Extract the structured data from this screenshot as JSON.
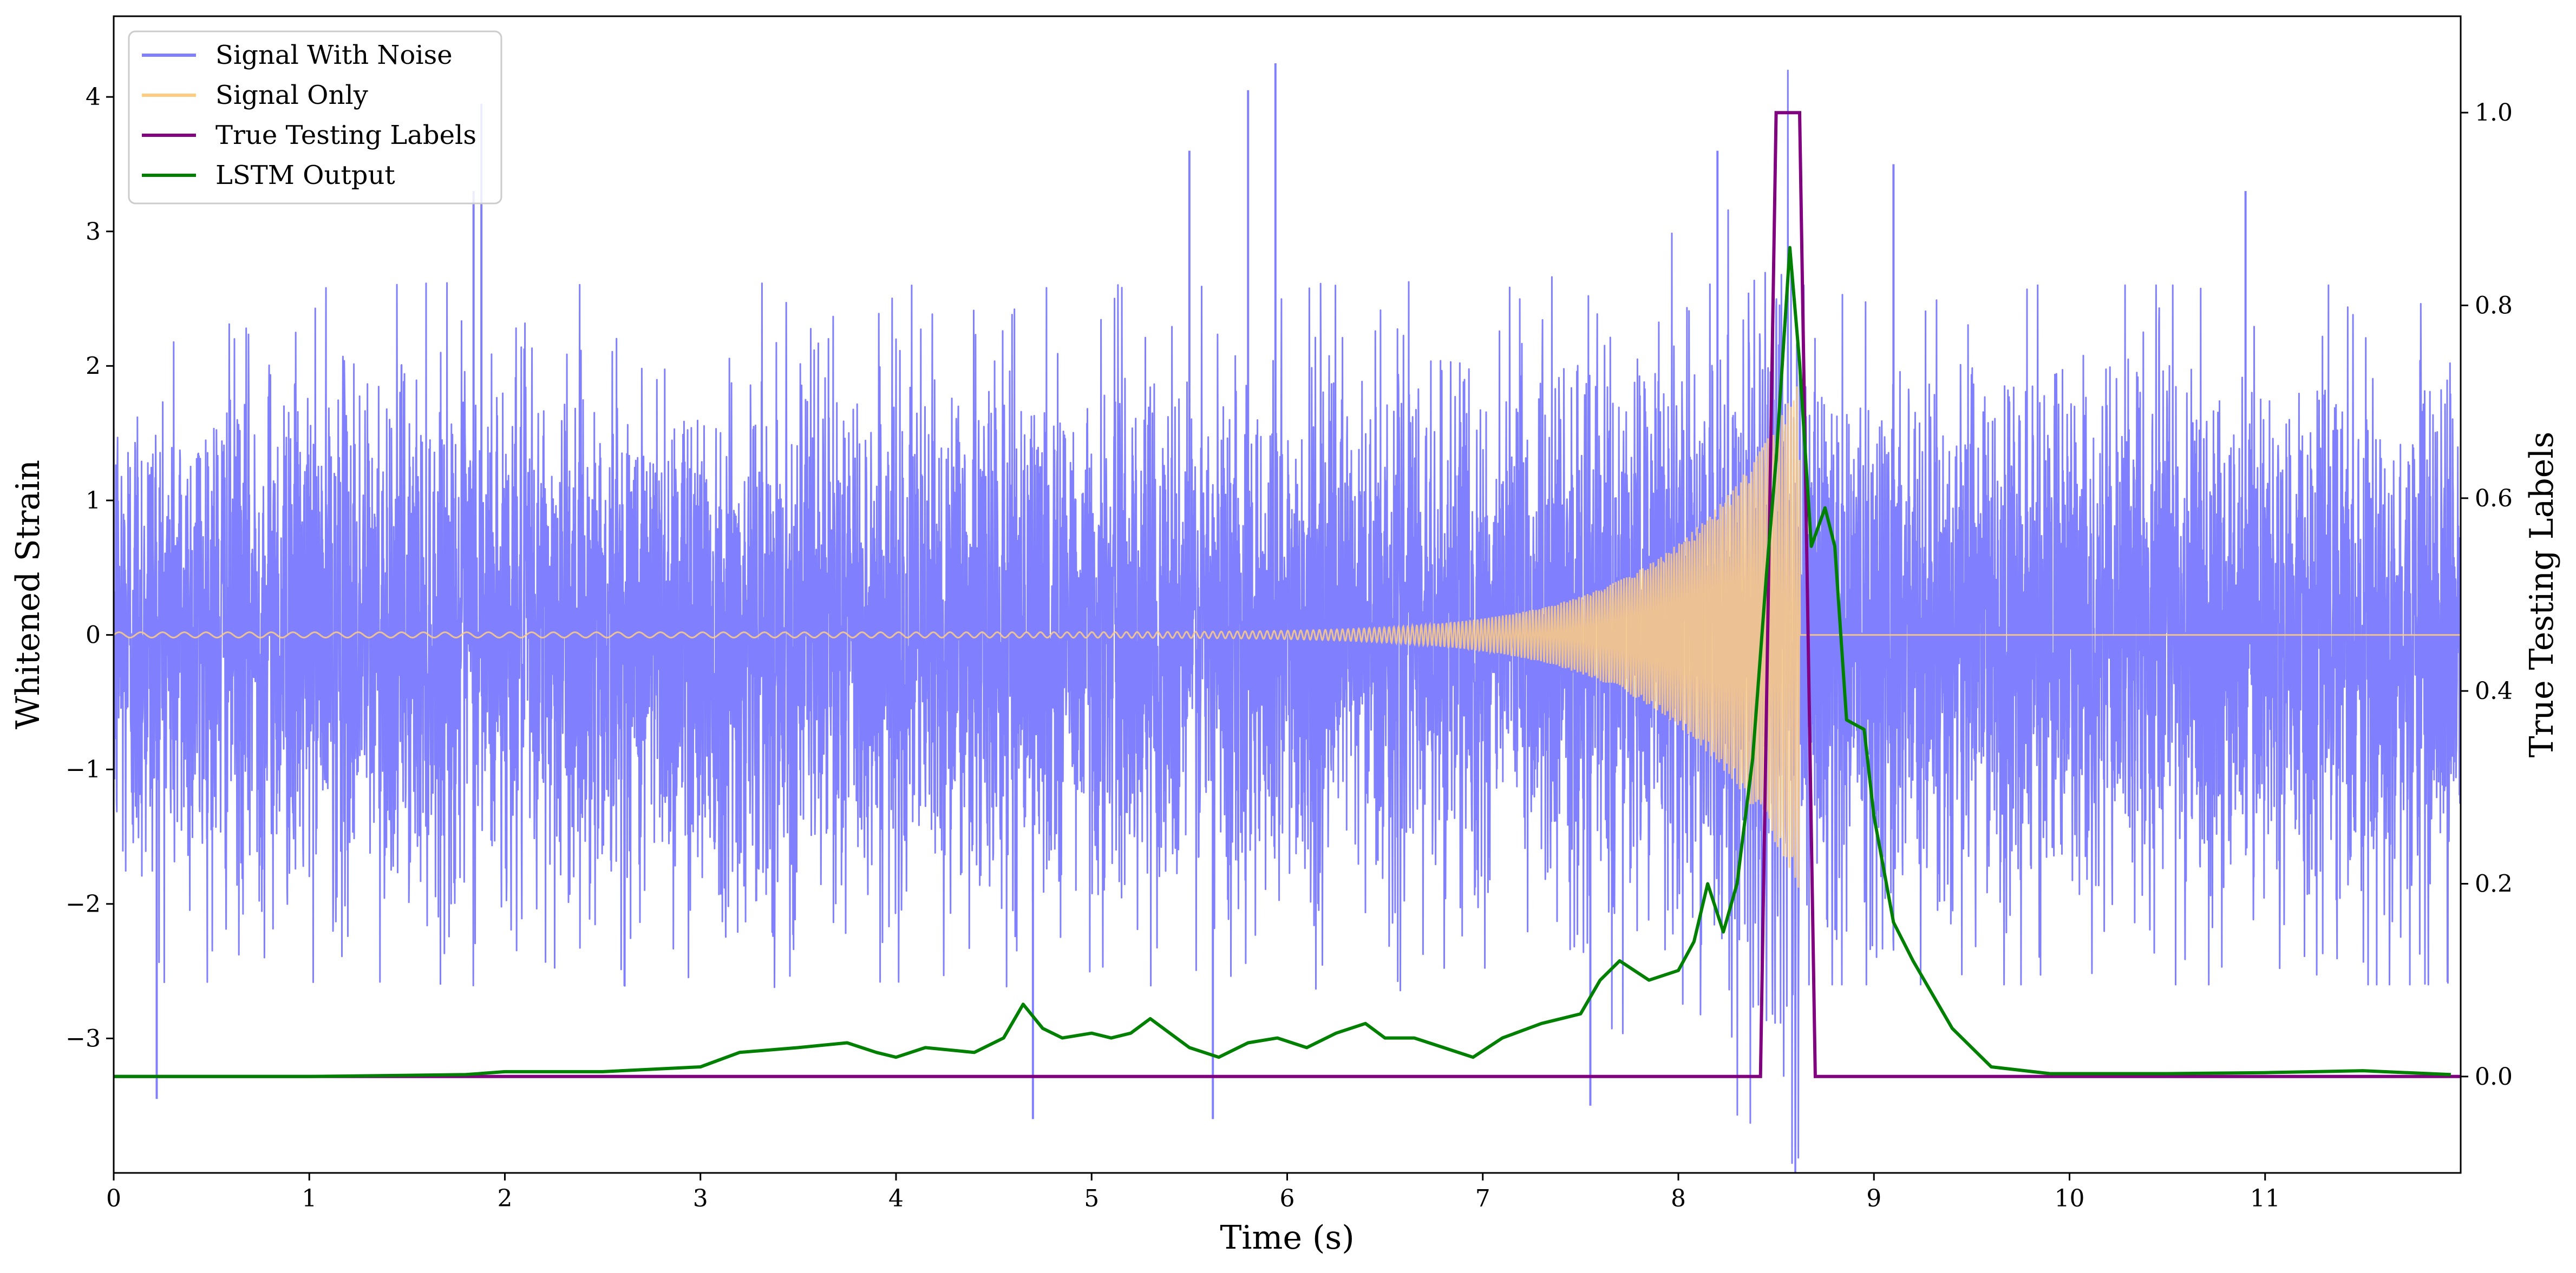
{
  "chart_data": {
    "type": "line",
    "xlabel": "Time (s)",
    "ylabel": "Whitened Strain",
    "y2label": "True Testing Labels",
    "xlim": [
      0,
      12
    ],
    "ylim": [
      -4,
      4.6
    ],
    "y2lim": [
      -0.1,
      1.1
    ],
    "xticks": [
      0,
      1,
      2,
      3,
      4,
      5,
      6,
      7,
      8,
      9,
      10,
      11
    ],
    "yticks": [
      -3,
      -2,
      -1,
      0,
      1,
      2,
      3,
      4
    ],
    "y2ticks": [
      0.0,
      0.2,
      0.4,
      0.6,
      0.8,
      1.0
    ],
    "y2tick_labels": [
      "0.0",
      "0.2",
      "0.4",
      "0.6",
      "0.8",
      "1.0"
    ],
    "grid": false,
    "legend_position": "upper left",
    "series": [
      {
        "name": "Signal With Noise",
        "axis": "left",
        "color": "#8080ff",
        "description_values": {
          "typical_range": [
            -1.6,
            1.6
          ],
          "peaks": [
            {
              "x": 0.22,
              "y": -3.45
            },
            {
              "x": 1.84,
              "y": 3.3
            },
            {
              "x": 1.88,
              "y": 3.95
            },
            {
              "x": 4.7,
              "y": -3.6
            },
            {
              "x": 5.5,
              "y": 3.6
            },
            {
              "x": 5.62,
              "y": -3.6
            },
            {
              "x": 5.8,
              "y": 4.05
            },
            {
              "x": 5.94,
              "y": 4.25
            },
            {
              "x": 7.55,
              "y": -3.5
            },
            {
              "x": 8.2,
              "y": 3.6
            },
            {
              "x": 9.1,
              "y": 3.5
            },
            {
              "x": 10.9,
              "y": 3.3
            }
          ]
        }
      },
      {
        "name": "Signal Only",
        "axis": "left",
        "color": "#ffcc80",
        "chirp": {
          "t_start": 0.0,
          "t_merger": 8.62,
          "amp_start": 0.02,
          "amp_peak": 1.9,
          "freq_start_hz": 9,
          "freq_end_hz": 40
        }
      },
      {
        "name": "True Testing Labels",
        "axis": "right",
        "color": "#800080",
        "x": [
          0,
          8.42,
          8.5,
          8.62,
          8.7,
          12
        ],
        "y": [
          0,
          0,
          1,
          1,
          0,
          0
        ]
      },
      {
        "name": "LSTM Output",
        "axis": "right",
        "color": "#008000",
        "x": [
          0,
          1.0,
          1.8,
          2.0,
          2.5,
          3.0,
          3.2,
          3.5,
          3.75,
          3.9,
          4.0,
          4.15,
          4.4,
          4.55,
          4.65,
          4.75,
          4.85,
          5.0,
          5.1,
          5.2,
          5.3,
          5.5,
          5.65,
          5.8,
          5.95,
          6.1,
          6.25,
          6.4,
          6.5,
          6.65,
          6.8,
          6.95,
          7.1,
          7.3,
          7.4,
          7.5,
          7.6,
          7.7,
          7.85,
          8.0,
          8.08,
          8.15,
          8.23,
          8.3,
          8.38,
          8.45,
          8.5,
          8.57,
          8.62,
          8.68,
          8.75,
          8.8,
          8.86,
          8.95,
          9.0,
          9.1,
          9.2,
          9.4,
          9.6,
          9.9,
          10.5,
          11.0,
          11.5,
          11.95
        ],
        "y": [
          0,
          0.0,
          0.002,
          0.005,
          0.005,
          0.01,
          0.025,
          0.03,
          0.035,
          0.025,
          0.02,
          0.03,
          0.025,
          0.04,
          0.075,
          0.05,
          0.04,
          0.045,
          0.04,
          0.045,
          0.06,
          0.03,
          0.02,
          0.035,
          0.04,
          0.03,
          0.045,
          0.055,
          0.04,
          0.04,
          0.03,
          0.02,
          0.04,
          0.055,
          0.06,
          0.065,
          0.1,
          0.12,
          0.1,
          0.11,
          0.14,
          0.2,
          0.15,
          0.2,
          0.33,
          0.52,
          0.64,
          0.86,
          0.74,
          0.55,
          0.59,
          0.55,
          0.37,
          0.36,
          0.27,
          0.16,
          0.12,
          0.05,
          0.01,
          0.003,
          0.003,
          0.004,
          0.006,
          0.002
        ]
      }
    ]
  }
}
